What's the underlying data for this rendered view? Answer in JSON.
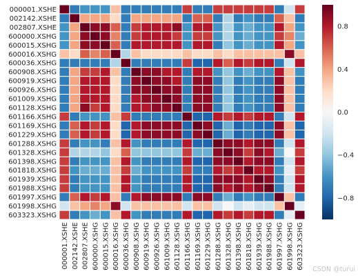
{
  "watermark": "CSDN @turui",
  "chart_data": {
    "type": "heatmap",
    "title": "",
    "xlabel": "",
    "ylabel": "",
    "labels": [
      "000001.XSHE",
      "002142.XSHE",
      "002807.XSHE",
      "600000.XSHG",
      "600015.XSHG",
      "600016.XSHG",
      "600036.XSHG",
      "600908.XSHG",
      "600919.XSHG",
      "600926.XSHG",
      "601009.XSHG",
      "601128.XSHG",
      "601166.XSHG",
      "601169.XSHG",
      "601229.XSHG",
      "601288.XSHG",
      "601328.XSHG",
      "601398.XSHG",
      "601818.XSHG",
      "601939.XSHG",
      "601988.XSHG",
      "601997.XSHG",
      "601998.XSHG",
      "603323.XSHG"
    ],
    "colormap": "RdBu_r",
    "vmin": -1.0,
    "vmax": 1.0,
    "colorbar": {
      "ticks": [
        -0.8,
        -0.4,
        0.0,
        0.4,
        0.8
      ],
      "tick_labels": [
        "−0.8",
        "−0.4",
        "0.0",
        "0.4",
        "0.8"
      ]
    },
    "cell_border_color": "#ffffff",
    "matrix": [
      [
        1.0,
        -0.7,
        -0.6,
        -0.6,
        -0.6,
        0.3,
        -0.7,
        -0.7,
        -0.7,
        -0.7,
        -0.7,
        -0.7,
        0.7,
        -0.7,
        -0.7,
        0.7,
        0.7,
        0.7,
        0.7,
        0.7,
        0.7,
        -0.7,
        -0.2,
        0.7
      ],
      [
        -0.7,
        1.0,
        0.4,
        0.4,
        0.4,
        0.2,
        -0.7,
        0.4,
        0.4,
        0.4,
        0.4,
        0.4,
        -0.7,
        0.6,
        0.6,
        -0.7,
        -0.3,
        -0.7,
        -0.6,
        -0.7,
        -0.7,
        0.6,
        0.3,
        -0.7
      ],
      [
        -0.6,
        0.4,
        1.0,
        0.9,
        0.9,
        0.6,
        -0.7,
        0.7,
        0.8,
        0.8,
        0.8,
        0.9,
        -0.6,
        0.8,
        0.8,
        -0.6,
        -0.3,
        -0.6,
        -0.5,
        -0.6,
        -0.6,
        0.8,
        0.4,
        -0.6
      ],
      [
        -0.6,
        0.4,
        0.9,
        1.0,
        0.9,
        0.5,
        -0.7,
        0.7,
        0.8,
        0.8,
        0.8,
        0.7,
        -0.6,
        0.7,
        0.7,
        -0.6,
        -0.3,
        -0.6,
        -0.5,
        -0.6,
        -0.6,
        0.7,
        0.5,
        -0.5
      ],
      [
        -0.6,
        0.4,
        0.9,
        0.9,
        1.0,
        0.6,
        -0.7,
        0.8,
        0.8,
        0.8,
        0.8,
        0.8,
        -0.6,
        0.8,
        0.8,
        -0.7,
        -0.4,
        -0.6,
        -0.5,
        -0.6,
        -0.6,
        0.8,
        0.4,
        -0.6
      ],
      [
        0.3,
        0.2,
        0.6,
        0.5,
        0.6,
        1.0,
        -0.3,
        0.3,
        0.2,
        0.2,
        0.2,
        0.2,
        0.3,
        0.2,
        0.2,
        0.3,
        0.2,
        0.3,
        0.3,
        0.3,
        0.3,
        0.3,
        0.9,
        0.3
      ],
      [
        -0.7,
        -0.7,
        -0.7,
        -0.7,
        -0.7,
        -0.3,
        1.0,
        -0.7,
        -0.7,
        -0.7,
        -0.7,
        -0.7,
        0.7,
        -0.8,
        -0.8,
        0.8,
        0.6,
        0.8,
        0.7,
        0.8,
        0.8,
        -0.7,
        -0.2,
        0.8
      ],
      [
        -0.7,
        0.4,
        0.7,
        0.7,
        0.8,
        0.3,
        -0.7,
        1.0,
        0.9,
        0.9,
        0.8,
        0.8,
        -0.7,
        0.8,
        0.8,
        -0.6,
        -0.4,
        -0.6,
        -0.5,
        -0.6,
        -0.6,
        0.8,
        0.3,
        -0.6
      ],
      [
        -0.7,
        0.4,
        0.8,
        0.8,
        0.8,
        0.2,
        -0.7,
        0.9,
        1.0,
        0.9,
        0.9,
        0.8,
        -0.7,
        0.9,
        0.9,
        -0.7,
        -0.4,
        -0.7,
        -0.6,
        -0.7,
        -0.7,
        0.9,
        0.3,
        -0.7
      ],
      [
        -0.7,
        0.4,
        0.8,
        0.8,
        0.8,
        0.2,
        -0.7,
        0.9,
        0.9,
        1.0,
        0.9,
        0.9,
        -0.7,
        0.9,
        0.9,
        -0.7,
        -0.4,
        -0.7,
        -0.6,
        -0.7,
        -0.7,
        0.9,
        0.3,
        -0.7
      ],
      [
        -0.7,
        0.4,
        0.8,
        0.8,
        0.8,
        0.2,
        -0.7,
        0.8,
        0.9,
        0.9,
        1.0,
        0.9,
        -0.7,
        0.9,
        0.9,
        -0.7,
        -0.4,
        -0.7,
        -0.6,
        -0.7,
        -0.7,
        0.9,
        0.3,
        -0.7
      ],
      [
        -0.7,
        0.4,
        0.9,
        0.7,
        0.8,
        0.2,
        -0.7,
        0.8,
        0.8,
        0.9,
        0.9,
        1.0,
        -0.7,
        0.9,
        0.9,
        -0.7,
        -0.4,
        -0.7,
        -0.6,
        -0.7,
        -0.7,
        0.9,
        0.3,
        -0.7
      ],
      [
        0.7,
        -0.7,
        -0.6,
        -0.6,
        -0.6,
        0.3,
        0.7,
        -0.7,
        -0.7,
        -0.7,
        -0.7,
        -0.7,
        1.0,
        -0.8,
        -0.8,
        0.8,
        0.7,
        0.8,
        0.7,
        0.8,
        0.8,
        -0.7,
        -0.2,
        0.8
      ],
      [
        -0.7,
        0.6,
        0.8,
        0.7,
        0.8,
        0.2,
        -0.8,
        0.8,
        0.9,
        0.9,
        0.9,
        0.9,
        -0.8,
        1.0,
        0.9,
        -0.8,
        -0.5,
        -0.8,
        -0.7,
        -0.8,
        -0.8,
        0.9,
        0.3,
        -0.8
      ],
      [
        -0.7,
        0.6,
        0.8,
        0.7,
        0.8,
        0.2,
        -0.8,
        0.8,
        0.9,
        0.9,
        0.9,
        0.9,
        -0.8,
        0.9,
        1.0,
        -0.8,
        -0.5,
        -0.8,
        -0.7,
        -0.8,
        -0.8,
        0.9,
        0.3,
        -0.8
      ],
      [
        0.7,
        -0.7,
        -0.6,
        -0.6,
        -0.7,
        0.3,
        0.8,
        -0.6,
        -0.7,
        -0.7,
        -0.7,
        -0.7,
        0.8,
        -0.8,
        -0.8,
        1.0,
        0.9,
        0.9,
        0.8,
        0.9,
        0.9,
        -0.7,
        -0.2,
        0.8
      ],
      [
        0.7,
        -0.3,
        -0.3,
        -0.3,
        -0.4,
        0.2,
        0.6,
        -0.4,
        -0.4,
        -0.4,
        -0.4,
        -0.4,
        0.7,
        -0.5,
        -0.5,
        0.9,
        1.0,
        0.9,
        0.7,
        0.9,
        0.8,
        -0.5,
        0.0,
        0.7
      ],
      [
        0.7,
        -0.7,
        -0.6,
        -0.6,
        -0.6,
        0.3,
        0.8,
        -0.6,
        -0.7,
        -0.7,
        -0.7,
        -0.7,
        0.8,
        -0.8,
        -0.8,
        0.9,
        0.9,
        1.0,
        0.8,
        0.9,
        0.9,
        -0.7,
        -0.2,
        0.8
      ],
      [
        0.7,
        -0.6,
        -0.5,
        -0.5,
        -0.5,
        0.3,
        0.7,
        -0.5,
        -0.6,
        -0.6,
        -0.6,
        -0.6,
        0.7,
        -0.7,
        -0.7,
        0.8,
        0.7,
        0.8,
        1.0,
        0.8,
        0.8,
        -0.6,
        -0.1,
        0.7
      ],
      [
        0.7,
        -0.7,
        -0.6,
        -0.6,
        -0.6,
        0.3,
        0.8,
        -0.6,
        -0.7,
        -0.7,
        -0.7,
        -0.7,
        0.8,
        -0.8,
        -0.8,
        0.9,
        0.9,
        0.9,
        0.8,
        1.0,
        0.9,
        -0.7,
        -0.2,
        0.8
      ],
      [
        0.7,
        -0.7,
        -0.6,
        -0.6,
        -0.6,
        0.3,
        0.8,
        -0.6,
        -0.7,
        -0.7,
        -0.7,
        -0.7,
        0.8,
        -0.8,
        -0.8,
        0.9,
        0.8,
        0.9,
        0.8,
        0.9,
        1.0,
        -0.7,
        -0.2,
        0.8
      ],
      [
        -0.7,
        0.6,
        0.8,
        0.7,
        0.8,
        0.3,
        -0.7,
        0.8,
        0.9,
        0.9,
        0.9,
        0.9,
        -0.7,
        0.9,
        0.9,
        -0.7,
        -0.5,
        -0.7,
        -0.6,
        -0.7,
        -0.7,
        1.0,
        0.3,
        -0.7
      ],
      [
        -0.2,
        0.3,
        0.4,
        0.5,
        0.4,
        0.9,
        -0.2,
        0.3,
        0.3,
        0.3,
        0.3,
        0.3,
        -0.2,
        0.3,
        0.3,
        -0.2,
        0.0,
        -0.2,
        -0.1,
        -0.2,
        -0.2,
        0.3,
        1.0,
        -0.1
      ],
      [
        0.7,
        -0.7,
        -0.6,
        -0.5,
        -0.6,
        0.3,
        0.8,
        -0.6,
        -0.7,
        -0.7,
        -0.7,
        -0.7,
        0.8,
        -0.8,
        -0.8,
        0.8,
        0.7,
        0.8,
        0.7,
        0.8,
        0.8,
        -0.7,
        -0.1,
        1.0
      ]
    ]
  }
}
